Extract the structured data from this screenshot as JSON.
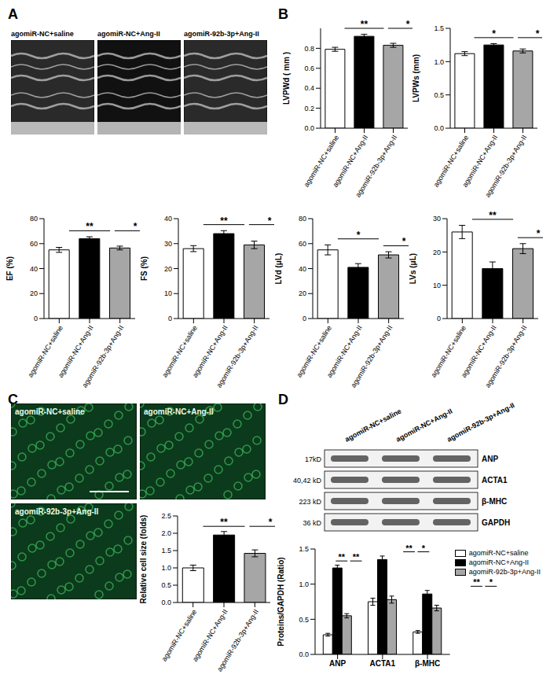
{
  "figure": {
    "panel_labels": [
      "A",
      "B",
      "C",
      "D"
    ],
    "echo_images": [
      "agomiR-NC+saline",
      "agomiR-NC+Ang-II",
      "agomiR-92b-3p+Ang-II"
    ],
    "histology_images": [
      "agomiR-NC+saline",
      "agomiR-NC+Ang-II",
      "agomiR-92b-3p+Ang-II"
    ],
    "blot": {
      "lanes": [
        "agomiR-NC+saline",
        "agomiR-NC+Ang-II",
        "agomiR-92b-3p+Ang-II"
      ],
      "bands": [
        {
          "size": "17kD",
          "label": "ANP"
        },
        {
          "size": "40,42 kD",
          "label": "ACTA1"
        },
        {
          "size": "223 kD",
          "label": "β-MHC"
        },
        {
          "size": "36 kD",
          "label": "GAPDH"
        }
      ]
    }
  },
  "chart_data": [
    {
      "type": "bar",
      "y_label": "LVPWd ( mm )",
      "categories": [
        "agomiR-NC+saline",
        "agomiR-NC+Ang-II",
        "agomiR-92b-3p+Ang-II"
      ],
      "values": [
        0.79,
        0.92,
        0.83
      ],
      "errors": [
        0.02,
        0.02,
        0.02
      ],
      "colors": [
        "#ffffff",
        "#000000",
        "#a6a6a6"
      ],
      "ylim": [
        0,
        1.0
      ],
      "yticks": [
        {
          "value": 0,
          "label": "0.0"
        },
        {
          "value": 0.2,
          "label": "0.2"
        },
        {
          "value": 0.4,
          "label": "0.4"
        },
        {
          "value": 0.6,
          "label": "0.6"
        },
        {
          "value": 0.8,
          "label": "0.8"
        }
      ],
      "annotations": [
        {
          "between": [
            "agomiR-NC+saline",
            "agomiR-NC+Ang-II"
          ],
          "text": "**"
        },
        {
          "between": [
            "agomiR-NC+Ang-II",
            "agomiR-92b-3p+Ang-II"
          ],
          "text": "*"
        }
      ]
    },
    {
      "type": "bar",
      "y_label": "LVPWs (mm)",
      "categories": [
        "agomiR-NC+saline",
        "agomiR-NC+Ang-II",
        "agomiR-92b-3p+Ang-II"
      ],
      "values": [
        1.12,
        1.25,
        1.16
      ],
      "errors": [
        0.03,
        0.02,
        0.03
      ],
      "colors": [
        "#ffffff",
        "#000000",
        "#a6a6a6"
      ],
      "ylim": [
        0,
        1.5
      ],
      "yticks": [
        {
          "value": 0,
          "label": "0.0"
        },
        {
          "value": 0.5,
          "label": "0.5"
        },
        {
          "value": 1,
          "label": "1.0"
        },
        {
          "value": 1.5,
          "label": "1.5"
        }
      ],
      "annotations": [
        {
          "between": [
            "agomiR-NC+saline",
            "agomiR-NC+Ang-II"
          ],
          "text": "*"
        },
        {
          "between": [
            "agomiR-NC+Ang-II",
            "agomiR-92b-3p+Ang-II"
          ],
          "text": "*"
        }
      ]
    },
    {
      "type": "bar",
      "y_label": "EF (%)",
      "categories": [
        "agomiR-NC+saline",
        "agomiR-NC+Ang-II",
        "agomiR-92b-3p+Ang-II"
      ],
      "values": [
        55,
        64,
        56.5
      ],
      "errors": [
        2,
        1.5,
        1.5
      ],
      "colors": [
        "#ffffff",
        "#000000",
        "#a6a6a6"
      ],
      "ylim": [
        0,
        80
      ],
      "yticks": [
        0,
        20,
        40,
        60,
        80
      ],
      "annotations": [
        {
          "between": [
            "agomiR-NC+saline",
            "agomiR-NC+Ang-II"
          ],
          "text": "**"
        },
        {
          "between": [
            "agomiR-NC+Ang-II",
            "agomiR-92b-3p+Ang-II"
          ],
          "text": "*"
        }
      ]
    },
    {
      "type": "bar",
      "y_label": "FS (%)",
      "categories": [
        "agomiR-NC+saline",
        "agomiR-NC+Ang-II",
        "agomiR-92b-3p+Ang-II"
      ],
      "values": [
        28,
        34,
        29.5
      ],
      "errors": [
        1.2,
        1.2,
        1.5
      ],
      "colors": [
        "#ffffff",
        "#000000",
        "#a6a6a6"
      ],
      "ylim": [
        0,
        40
      ],
      "yticks": [
        0,
        10,
        20,
        30,
        40
      ],
      "annotations": [
        {
          "between": [
            "agomiR-NC+saline",
            "agomiR-NC+Ang-II"
          ],
          "text": "**"
        },
        {
          "between": [
            "agomiR-NC+Ang-II",
            "agomiR-92b-3p+Ang-II"
          ],
          "text": "*"
        }
      ]
    },
    {
      "type": "bar",
      "y_label": "LVd (μL)",
      "categories": [
        "agomiR-NC+saline",
        "agomiR-NC+Ang-II",
        "agomiR-92b-3p+Ang-II"
      ],
      "values": [
        55,
        41,
        51
      ],
      "errors": [
        4,
        3,
        2.5
      ],
      "colors": [
        "#ffffff",
        "#000000",
        "#a6a6a6"
      ],
      "ylim": [
        0,
        80
      ],
      "yticks": [
        0,
        20,
        40,
        60,
        80
      ],
      "annotations": [
        {
          "between": [
            "agomiR-NC+saline",
            "agomiR-NC+Ang-II"
          ],
          "text": "*"
        },
        {
          "between": [
            "agomiR-NC+Ang-II",
            "agomiR-92b-3p+Ang-II"
          ],
          "text": "*"
        }
      ]
    },
    {
      "type": "bar",
      "y_label": "LVs (μL)",
      "categories": [
        "agomiR-NC+saline",
        "agomiR-NC+Ang-II",
        "agomiR-92b-3p+Ang-II"
      ],
      "values": [
        26,
        15,
        21
      ],
      "errors": [
        2,
        2,
        1.5
      ],
      "colors": [
        "#ffffff",
        "#000000",
        "#a6a6a6"
      ],
      "ylim": [
        0,
        30
      ],
      "yticks": [
        0,
        10,
        20,
        30
      ],
      "annotations": [
        {
          "between": [
            "agomiR-NC+saline",
            "agomiR-NC+Ang-II"
          ],
          "text": "**"
        },
        {
          "between": [
            "agomiR-NC+Ang-II",
            "agomiR-92b-3p+Ang-II"
          ],
          "text": "*"
        }
      ]
    },
    {
      "type": "bar",
      "y_label": "Relative cell size (folds)",
      "categories": [
        "agomiR-NC+saline",
        "agomiR-NC+Ang-II",
        "agomiR-92b-3p+Ang-II"
      ],
      "values": [
        1.0,
        1.95,
        1.42
      ],
      "errors": [
        0.08,
        0.1,
        0.1
      ],
      "colors": [
        "#ffffff",
        "#000000",
        "#a6a6a6"
      ],
      "ylim": [
        0,
        2.5
      ],
      "yticks": [
        {
          "value": 0,
          "label": "0.0"
        },
        {
          "value": 0.5,
          "label": "0.5"
        },
        {
          "value": 1,
          "label": "1.0"
        },
        {
          "value": 1.5,
          "label": "1.5"
        },
        {
          "value": 2,
          "label": "2.0"
        },
        {
          "value": 2.5,
          "label": "2.5"
        }
      ],
      "annotations": [
        {
          "between": [
            "agomiR-NC+saline",
            "agomiR-NC+Ang-II"
          ],
          "text": "**"
        },
        {
          "between": [
            "agomiR-NC+Ang-II",
            "agomiR-92b-3p+Ang-II"
          ],
          "text": "*"
        }
      ]
    },
    {
      "type": "bar",
      "y_label": "Proteins/GAPDH (Ratio)",
      "categories": [
        "ANP",
        "ACTA1",
        "β-MHC"
      ],
      "series": [
        {
          "name": "agomiR-NC+saline",
          "color": "#ffffff",
          "values": [
            0.28,
            0.75,
            0.32
          ],
          "errors": [
            0.02,
            0.05,
            0.02
          ]
        },
        {
          "name": "agomiR-NC+Ang-II",
          "color": "#000000",
          "values": [
            1.23,
            1.35,
            0.86
          ],
          "errors": [
            0.04,
            0.05,
            0.05
          ]
        },
        {
          "name": "agomiR-92b-3p+Ang-II",
          "color": "#a6a6a6",
          "values": [
            0.55,
            0.78,
            0.66
          ],
          "errors": [
            0.03,
            0.05,
            0.04
          ]
        }
      ],
      "ylim": [
        0,
        1.5
      ],
      "yticks": [
        {
          "value": 0,
          "label": "0.0"
        },
        {
          "value": 0.5,
          "label": "0.5"
        },
        {
          "value": 1,
          "label": "1.0"
        },
        {
          "value": 1.5,
          "label": "1.5"
        }
      ],
      "legend": "upper right",
      "annotations": [
        {
          "category": "ANP",
          "between": [
            "agomiR-NC+saline",
            "agomiR-NC+Ang-II"
          ],
          "text": "**"
        },
        {
          "category": "ANP",
          "between": [
            "agomiR-NC+Ang-II",
            "agomiR-92b-3p+Ang-II"
          ],
          "text": "**"
        },
        {
          "category": "ACTA1",
          "between": [
            "agomiR-NC+saline",
            "agomiR-NC+Ang-II"
          ],
          "text": "**"
        },
        {
          "category": "ACTA1",
          "between": [
            "agomiR-NC+Ang-II",
            "agomiR-92b-3p+Ang-II"
          ],
          "text": "*"
        },
        {
          "category": "β-MHC",
          "between": [
            "agomiR-NC+saline",
            "agomiR-NC+Ang-II"
          ],
          "text": "**"
        },
        {
          "category": "β-MHC",
          "between": [
            "agomiR-NC+Ang-II",
            "agomiR-92b-3p+Ang-II"
          ],
          "text": "*"
        }
      ]
    }
  ]
}
